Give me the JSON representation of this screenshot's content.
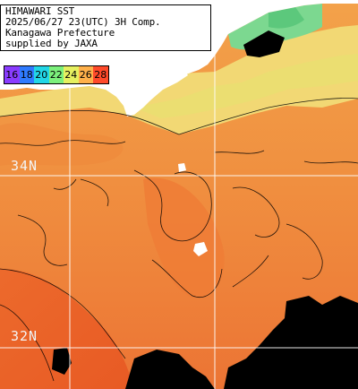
{
  "caption": {
    "line1": "HIMAWARI SST",
    "line2": "2025/06/27 23(UTC) 3H Comp.",
    "line3": "Kanagawa Prefecture",
    "line4": "supplied by JAXA"
  },
  "legend": [
    {
      "label": "16",
      "color": "#8a3cff"
    },
    {
      "label": "18",
      "color": "#2f7bff"
    },
    {
      "label": "20",
      "color": "#22d6e6"
    },
    {
      "label": "22",
      "color": "#7cf07c"
    },
    {
      "label": "24",
      "color": "#e6f060"
    },
    {
      "label": "26",
      "color": "#ffb04a"
    },
    {
      "label": "28",
      "color": "#ff4a2a"
    }
  ],
  "latitude_labels": {
    "lat34": "34N",
    "lat32": "32N"
  },
  "colors": {
    "land": "#ffffff",
    "cloud": "#000000",
    "sst_warm": "#f08a3c",
    "sst_hot": "#e8602a",
    "sst_coast": "#f0d078",
    "sst_cool": "#7cd890",
    "grid": "#ffffff"
  }
}
